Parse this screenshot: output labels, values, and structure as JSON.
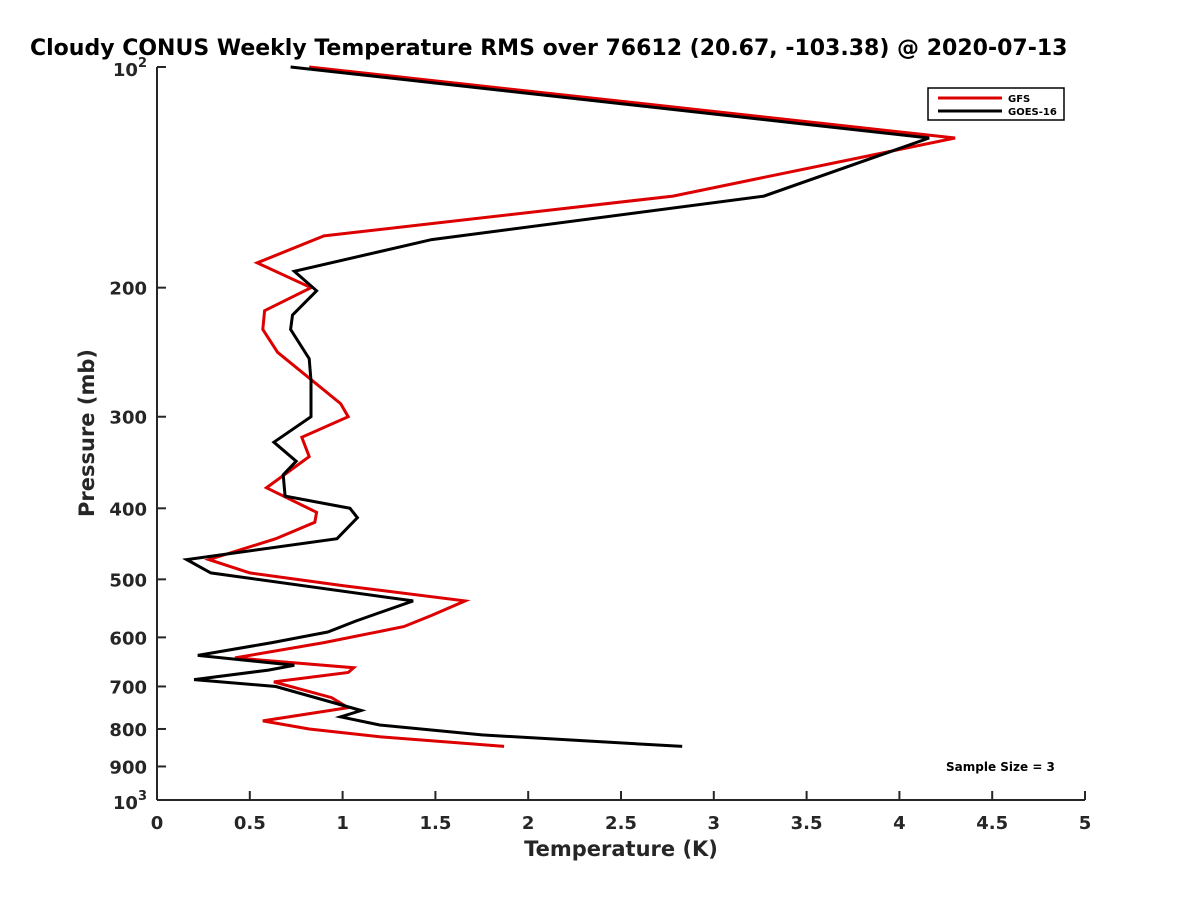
{
  "chart_data": {
    "type": "line",
    "title": "Cloudy CONUS Weekly Temperature RMS over 76612 (20.67, -103.38) @ 2020-07-13",
    "xlabel": "Temperature (K)",
    "ylabel": "Pressure (mb)",
    "xlim": [
      0,
      5
    ],
    "ylim": [
      1000,
      100
    ],
    "yscale": "log",
    "x_ticks": [
      0,
      0.5,
      1,
      1.5,
      2,
      2.5,
      3,
      3.5,
      4,
      4.5,
      5
    ],
    "x_tick_labels": [
      "0",
      "0.5",
      "1",
      "1.5",
      "2",
      "2.5",
      "3",
      "3.5",
      "4",
      "4.5",
      "5"
    ],
    "y_ticks": [
      {
        "value": 100,
        "base": "10",
        "exp": "2"
      },
      {
        "value": 200,
        "label": "200"
      },
      {
        "value": 300,
        "label": "300"
      },
      {
        "value": 400,
        "label": "400"
      },
      {
        "value": 500,
        "label": "500"
      },
      {
        "value": 600,
        "label": "600"
      },
      {
        "value": 700,
        "label": "700"
      },
      {
        "value": 800,
        "label": "800"
      },
      {
        "value": 900,
        "label": "900"
      },
      {
        "value": 1000,
        "base": "10",
        "exp": "3"
      }
    ],
    "legend_position": "top-right",
    "annotation": "Sample Size = 3",
    "series": [
      {
        "name": "GFS",
        "color": "#dd0000",
        "points": [
          [
            0.82,
            100
          ],
          [
            4.3,
            125
          ],
          [
            2.78,
            150
          ],
          [
            0.9,
            170
          ],
          [
            0.54,
            185
          ],
          [
            0.83,
            200
          ],
          [
            0.58,
            215
          ],
          [
            0.57,
            228
          ],
          [
            0.65,
            245
          ],
          [
            0.99,
            288
          ],
          [
            1.03,
            300
          ],
          [
            0.78,
            320
          ],
          [
            0.82,
            340
          ],
          [
            0.59,
            375
          ],
          [
            0.86,
            405
          ],
          [
            0.85,
            418
          ],
          [
            0.64,
            440
          ],
          [
            0.28,
            470
          ],
          [
            0.5,
            490
          ],
          [
            1.0,
            510
          ],
          [
            1.66,
            535
          ],
          [
            1.48,
            560
          ],
          [
            1.33,
            580
          ],
          [
            0.9,
            610
          ],
          [
            0.42,
            640
          ],
          [
            1.06,
            660
          ],
          [
            1.03,
            670
          ],
          [
            0.63,
            690
          ],
          [
            0.94,
            725
          ],
          [
            1.03,
            748
          ],
          [
            0.57,
            780
          ],
          [
            0.82,
            800
          ],
          [
            1.2,
            820
          ],
          [
            1.87,
            845
          ]
        ]
      },
      {
        "name": "GOES-16",
        "color": "#000000",
        "points": [
          [
            0.72,
            100
          ],
          [
            4.16,
            125
          ],
          [
            3.27,
            150
          ],
          [
            1.48,
            172
          ],
          [
            0.74,
            190
          ],
          [
            0.86,
            202
          ],
          [
            0.73,
            218
          ],
          [
            0.72,
            228
          ],
          [
            0.82,
            250
          ],
          [
            0.83,
            268
          ],
          [
            0.83,
            300
          ],
          [
            0.63,
            325
          ],
          [
            0.75,
            345
          ],
          [
            0.68,
            360
          ],
          [
            0.69,
            385
          ],
          [
            1.04,
            400
          ],
          [
            1.08,
            412
          ],
          [
            0.97,
            440
          ],
          [
            0.16,
            470
          ],
          [
            0.29,
            490
          ],
          [
            1.38,
            535
          ],
          [
            1.07,
            570
          ],
          [
            0.92,
            590
          ],
          [
            0.62,
            610
          ],
          [
            0.22,
            635
          ],
          [
            0.74,
            655
          ],
          [
            0.6,
            665
          ],
          [
            0.2,
            685
          ],
          [
            0.64,
            700
          ],
          [
            1.1,
            755
          ],
          [
            0.99,
            770
          ],
          [
            1.2,
            790
          ],
          [
            1.75,
            815
          ],
          [
            2.83,
            845
          ]
        ]
      }
    ]
  }
}
